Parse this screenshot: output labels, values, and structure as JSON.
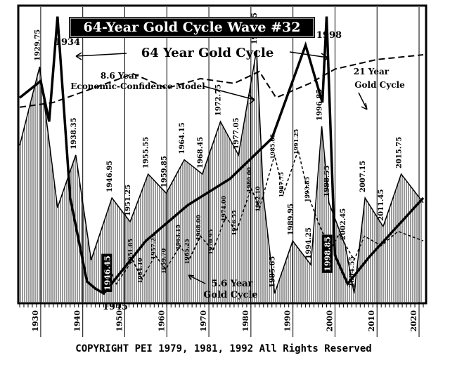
{
  "chart_data": {
    "type": "line",
    "title": "64-Year Gold Cycle Wave #32",
    "copyright": "COPYRIGHT PEI 1979, 1981, 1992 All Rights Reserved",
    "xlim": [
      1925,
      2021
    ],
    "x_ticks": [
      1930,
      1940,
      1950,
      1960,
      1970,
      1980,
      1990,
      2000,
      2010,
      2020
    ],
    "grid": true,
    "labels": {
      "gold64": "64 Year Gold Cycle",
      "ecm": "8.6 Year\nEconomic-Confidence Model",
      "gold21": "21 Year\nGold Cycle",
      "gold56": "5.6 Year\nGold Cycle"
    },
    "peaks_64": [
      {
        "year": 1934,
        "label": "1934"
      },
      {
        "year": 1998,
        "label": "1998"
      }
    ],
    "low_64": {
      "year": 1945,
      "label": "1945"
    },
    "ecm_turns": [
      "1929.75",
      "1938.35",
      "1946.95",
      "1951.25",
      "1955.55",
      "1959.85",
      "1964.15",
      "1968.45",
      "1972.75",
      "1977.05",
      "1981.35",
      "1985.65",
      "1989.95",
      "1994.25",
      "1996.85",
      "1998.55",
      "2002.45",
      "2004.55",
      "2007.15",
      "2011.45",
      "2015.75"
    ],
    "gold56_turns": [
      "1946.45",
      "1951.85",
      "1954.10",
      "1957.25",
      "1959.70",
      "1963.15",
      "1965.25",
      "1968.00",
      "1970.95",
      "1974.00",
      "1976.55",
      "1980.00",
      "1982.10",
      "1985.65",
      "1987.75",
      "1991.25",
      "1993.85",
      "1998.85"
    ],
    "highlighted_turns": [
      "1946.45",
      "1998.85"
    ],
    "series": [
      {
        "name": "64 Year Gold Cycle",
        "x": [
          1925,
          1930,
          1932,
          1934,
          1937,
          1941,
          1943,
          1945,
          1955,
          1965,
          1975,
          1985,
          1993,
          1997,
          1998,
          2000,
          2003,
          2008,
          2021
        ],
        "y": [
          82,
          89,
          72,
          116,
          40,
          5,
          2,
          0,
          22,
          37,
          48,
          65,
          104,
          80,
          116,
          16,
          4,
          15,
          40
        ]
      },
      {
        "name": "8.6 Year Economic-Confidence Model",
        "x": [
          1925,
          1929.75,
          1934,
          1938.35,
          1942,
          1946.95,
          1951.25,
          1955.55,
          1959.85,
          1964.15,
          1968.45,
          1972.75,
          1977.05,
          1981.35,
          1983,
          1985.65,
          1989.95,
          1994.25,
          1996.85,
          1998.55,
          2002.45,
          2004.55,
          2007.15,
          2011.45,
          2015.75,
          2021
        ],
        "y": [
          62,
          95,
          36,
          58,
          14,
          40,
          30,
          50,
          42,
          56,
          50,
          72,
          58,
          102,
          40,
          0,
          22,
          12,
          70,
          38,
          20,
          0,
          40,
          28,
          50,
          38
        ]
      },
      {
        "name": "21 Year Gold Cycle",
        "x": [
          1925,
          1933,
          1952,
          1960,
          1968,
          1976,
          1982,
          1986,
          1994,
          2000,
          2010,
          2021
        ],
        "y": [
          78,
          80,
          92,
          86,
          90,
          88,
          93,
          82,
          88,
          94,
          98,
          100
        ]
      },
      {
        "name": "5.6 Year Gold Cycle",
        "x": [
          1945,
          1946.45,
          1948,
          1951.85,
          1954.1,
          1957.25,
          1959.7,
          1963.15,
          1965.25,
          1968.0,
          1970.95,
          1974.0,
          1976.55,
          1980.0,
          1982.1,
          1985.65,
          1987.75,
          1991.25,
          1993.85,
          1996,
          1998.85,
          2001,
          2004.55,
          2007,
          2011,
          2015,
          2021
        ],
        "y": [
          0,
          10,
          4,
          14,
          6,
          16,
          10,
          20,
          14,
          24,
          18,
          32,
          26,
          44,
          36,
          58,
          42,
          60,
          40,
          30,
          18,
          25,
          14,
          24,
          20,
          26,
          22
        ]
      }
    ]
  }
}
